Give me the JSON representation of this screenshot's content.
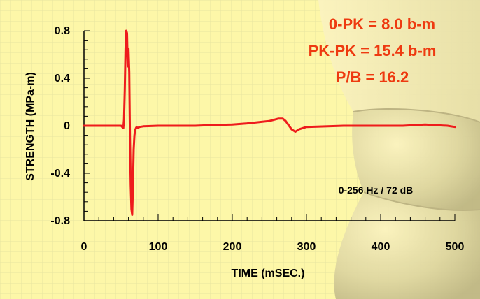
{
  "chart_data": {
    "type": "line",
    "xlabel": "TIME (mSEC.)",
    "ylabel": "STRENGTH (MPa-m)",
    "xlim": [
      0,
      500
    ],
    "ylim": [
      -0.8,
      0.8
    ],
    "x_ticks": [
      0,
      100,
      200,
      300,
      400,
      500
    ],
    "y_ticks": [
      0.8,
      0.4,
      0,
      -0.4,
      -0.8
    ],
    "x_tick_labels": [
      "0",
      "100",
      "200",
      "300",
      "400",
      "500"
    ],
    "y_tick_labels": [
      "0.8",
      "0.4",
      "0",
      "-0.4",
      "-0.8"
    ],
    "grid": true,
    "line_color": "#ee1c1c",
    "annotations": [
      "0-PK =  8.0 b-m",
      "PK-PK =  15.4 b-m",
      "P/B = 16.2",
      "0-256 Hz / 72 dB"
    ],
    "series": [
      {
        "x": [
          0,
          50,
          53,
          54,
          55,
          56,
          57,
          58,
          59,
          60,
          61,
          62,
          63,
          64,
          65,
          66,
          67,
          68,
          69,
          70,
          71,
          72,
          75,
          80,
          100,
          150,
          170,
          200,
          220,
          250,
          262,
          268,
          272,
          280,
          285,
          290,
          300,
          350,
          400,
          430,
          460,
          490,
          500
        ],
        "y": [
          0,
          0,
          -0.02,
          0.05,
          0.3,
          0.65,
          0.8,
          0.78,
          0.5,
          0.65,
          0.45,
          -0.1,
          -0.5,
          -0.7,
          -0.75,
          -0.5,
          -0.2,
          -0.08,
          -0.04,
          -0.02,
          -0.01,
          -0.02,
          -0.01,
          -0.005,
          0,
          0,
          0.005,
          0.01,
          0.02,
          0.04,
          0.06,
          0.06,
          0.04,
          -0.03,
          -0.05,
          -0.03,
          -0.01,
          0,
          0,
          0,
          0.01,
          0,
          -0.01
        ]
      }
    ]
  }
}
